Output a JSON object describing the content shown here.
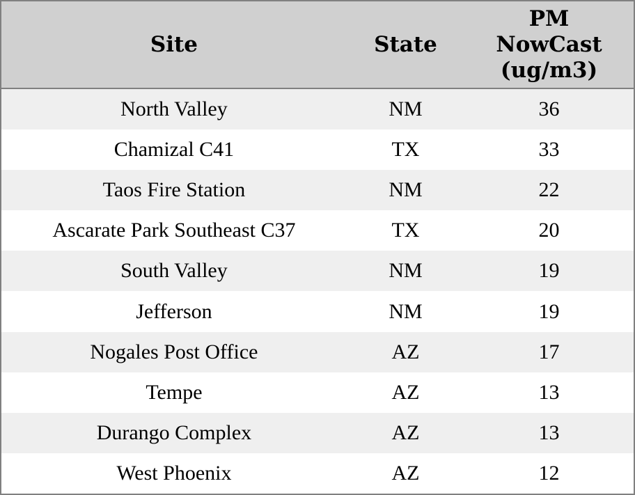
{
  "table": {
    "columns": [
      {
        "label": "Site"
      },
      {
        "label": "State"
      },
      {
        "label": "PM NowCast (ug/m3)"
      }
    ],
    "rows": [
      {
        "site": "North Valley",
        "state": "NM",
        "pm_nowcast": "36"
      },
      {
        "site": "Chamizal C41",
        "state": "TX",
        "pm_nowcast": "33"
      },
      {
        "site": "Taos Fire Station",
        "state": "NM",
        "pm_nowcast": "22"
      },
      {
        "site": "Ascarate Park Southeast C37",
        "state": "TX",
        "pm_nowcast": "20"
      },
      {
        "site": "South Valley",
        "state": "NM",
        "pm_nowcast": "19"
      },
      {
        "site": "Jefferson",
        "state": "NM",
        "pm_nowcast": "19"
      },
      {
        "site": "Nogales Post Office",
        "state": "AZ",
        "pm_nowcast": "17"
      },
      {
        "site": "Tempe",
        "state": "AZ",
        "pm_nowcast": "13"
      },
      {
        "site": "Durango Complex",
        "state": "AZ",
        "pm_nowcast": "13"
      },
      {
        "site": "West Phoenix",
        "state": "AZ",
        "pm_nowcast": "12"
      }
    ]
  },
  "colors": {
    "outer_border": "#808080",
    "header_background": "#d0d0d0",
    "row_odd_background": "#efefef",
    "row_even_background": "#ffffff",
    "text": "#000000"
  },
  "chart_data": {
    "type": "table",
    "title": "",
    "columns": [
      "Site",
      "State",
      "PM NowCast (ug/m3)"
    ],
    "categories": [
      "North Valley",
      "Chamizal C41",
      "Taos Fire Station",
      "Ascarate Park Southeast C37",
      "South Valley",
      "Jefferson",
      "Nogales Post Office",
      "Tempe",
      "Durango Complex",
      "West Phoenix"
    ],
    "states": [
      "NM",
      "TX",
      "NM",
      "TX",
      "NM",
      "NM",
      "AZ",
      "AZ",
      "AZ",
      "AZ"
    ],
    "values": [
      36,
      33,
      22,
      20,
      19,
      19,
      17,
      13,
      13,
      12
    ]
  }
}
